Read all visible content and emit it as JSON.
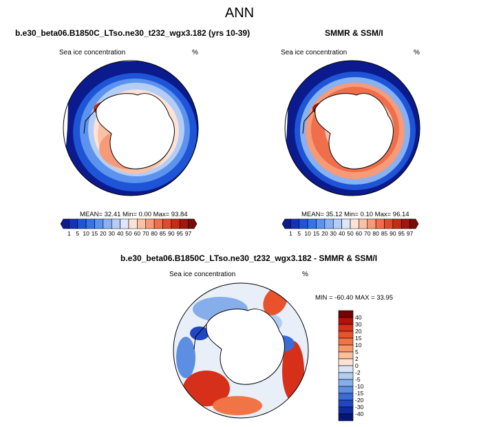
{
  "title": "ANN",
  "panels": [
    {
      "name": "model",
      "header": "b.e30_beta06.B1850C_LTso.ne30_t232_wgx3.182 (yrs 10-39)",
      "field_label": "Sea ice concentration",
      "units": "%",
      "stats": {
        "mean": "32.41",
        "min": "0.00",
        "max": "93.84"
      },
      "stats_text": "MEAN=  32.41  Min=   0.00  Max=  93.84"
    },
    {
      "name": "obs",
      "header": "SMMR & SSM/I",
      "field_label": "Sea ice concentration",
      "units": "%",
      "stats": {
        "mean": "35.12",
        "min": "0.10",
        "max": "96.14"
      },
      "stats_text": "MEAN=  35.12  Min=   0.10  Max=  96.14"
    },
    {
      "name": "diff",
      "header": "b.e30_beta06.B1850C_LTso.ne30_t232_wgx3.182 - SMMR & SSM/I",
      "field_label": "Sea ice concentration",
      "units": "%",
      "stats_text": "MIN = -60.40 MAX =  33.95"
    }
  ],
  "colorbar_levels": [
    "1",
    "5",
    "10",
    "15",
    "20",
    "30",
    "40",
    "50",
    "60",
    "70",
    "80",
    "85",
    "90",
    "95",
    "97"
  ],
  "colorbar_colors": [
    "#0b1a8c",
    "#1232b8",
    "#1e55d6",
    "#3474e6",
    "#5c93ee",
    "#88b1f2",
    "#b3cdf6",
    "#dce8fa",
    "#fde3d6",
    "#fbc1a6",
    "#f79a77",
    "#ef6e4c",
    "#e04a2c",
    "#c42c16",
    "#a0180c",
    "#7a0c06"
  ],
  "diff_levels": [
    "40",
    "30",
    "20",
    "15",
    "10",
    "5",
    "2",
    "0",
    "-2",
    "-5",
    "-10",
    "-15",
    "-20",
    "-30",
    "-40"
  ],
  "diff_colors": [
    "#7a0000",
    "#b0130a",
    "#d6301a",
    "#e8522c",
    "#f07446",
    "#f7996b",
    "#fbbf9c",
    "#fde3d3",
    "#d8e6f8",
    "#b1cdf2",
    "#86aeea",
    "#5d8ee2",
    "#3a6cd6",
    "#2046c2",
    "#0f2aa0",
    "#071574"
  ]
}
